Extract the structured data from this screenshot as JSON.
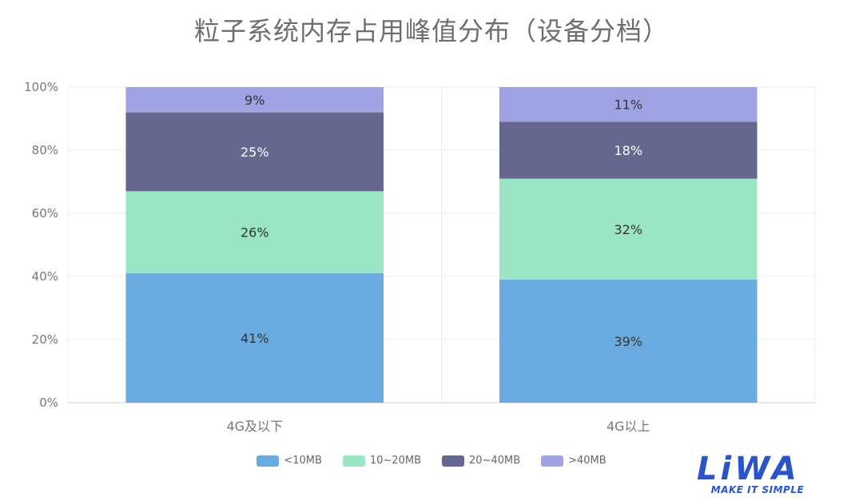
{
  "chart_data": {
    "type": "bar",
    "stacked": true,
    "title": "粒子系统内存占用峰值分布（设备分档）",
    "categories": [
      "4G及以下",
      "4G以上"
    ],
    "ylim": [
      0,
      100
    ],
    "yticks": [
      "0%",
      "20%",
      "40%",
      "60%",
      "80%",
      "100%"
    ],
    "grid": true,
    "legend_position": "bottom",
    "series": [
      {
        "name": "<10MB",
        "values": [
          41,
          39
        ],
        "labels": [
          "41%",
          "39%"
        ],
        "color": "#6aace2"
      },
      {
        "name": "10~20MB",
        "values": [
          26,
          32
        ],
        "labels": [
          "26%",
          "32%"
        ],
        "color": "#9ae6c4"
      },
      {
        "name": "20~40MB",
        "values": [
          25,
          18
        ],
        "labels": [
          "25%",
          "18%"
        ],
        "color": "#65678e"
      },
      {
        "name": ">40MB",
        "values": [
          9,
          11
        ],
        "labels": [
          "9%",
          "11%"
        ],
        "color": "#a0a3e3"
      }
    ]
  },
  "logo": {
    "text": "LiWA",
    "tagline": "MAKE IT SIMPLE",
    "color": "#2a55c9"
  }
}
